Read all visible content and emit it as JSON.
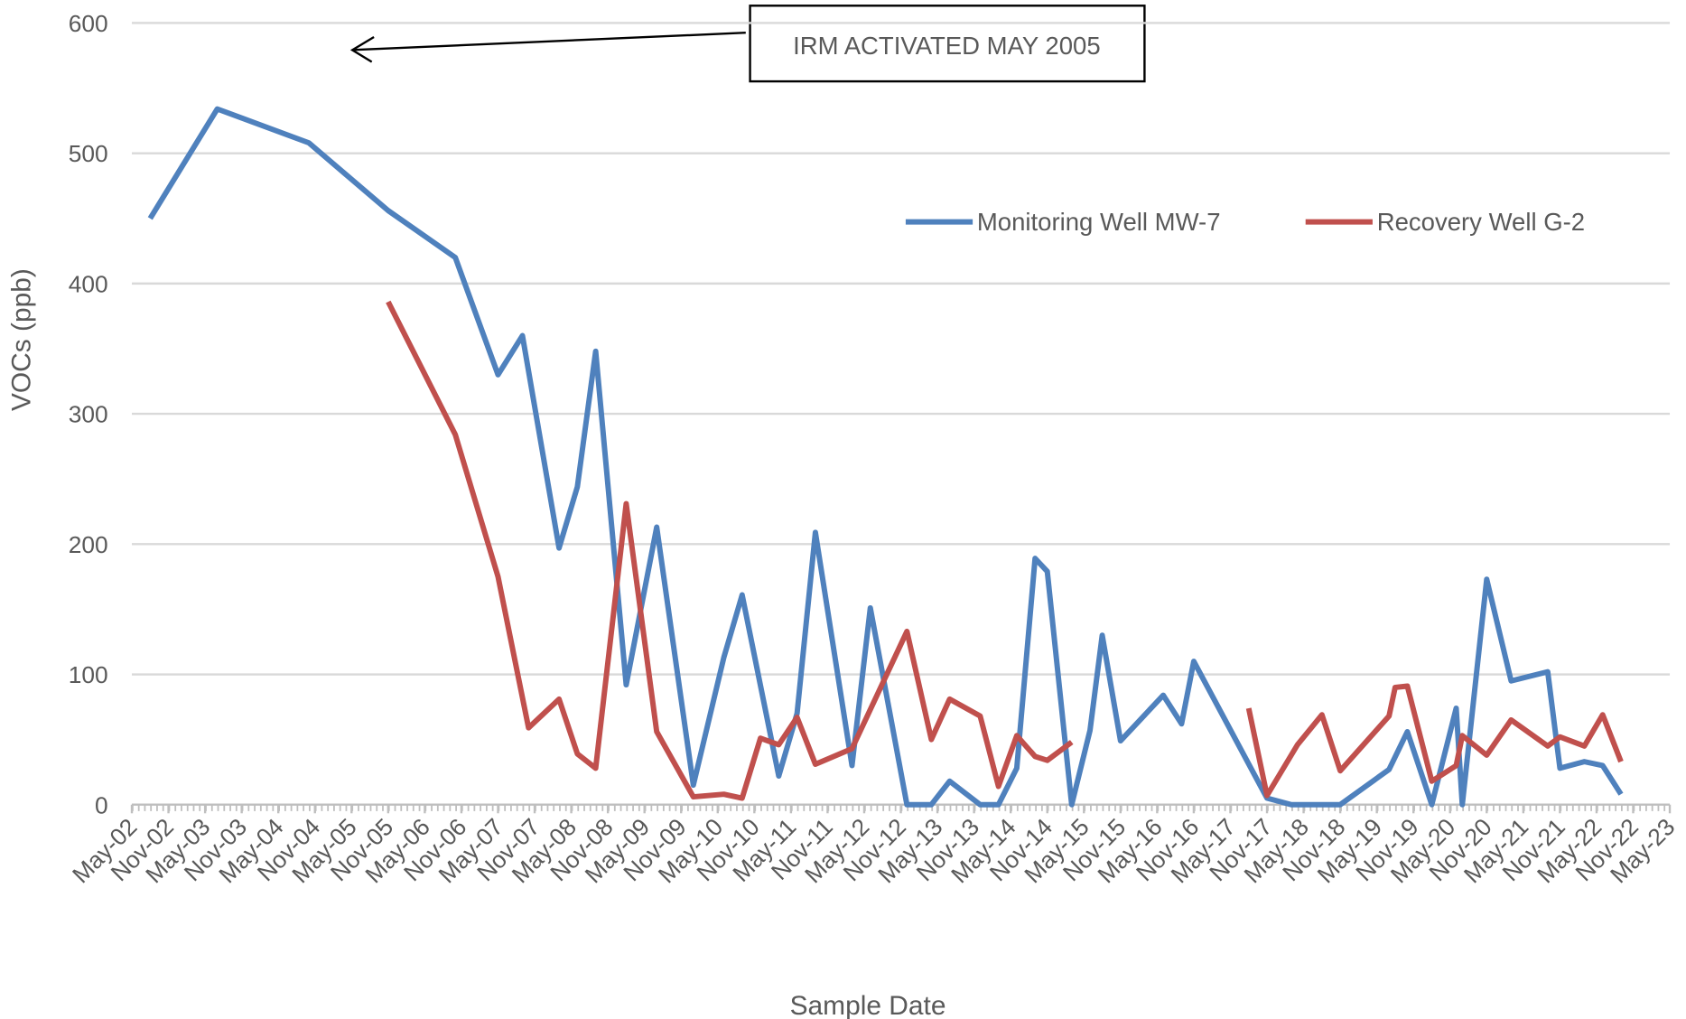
{
  "chart_data": {
    "type": "line",
    "xlabel": "Sample Date",
    "ylabel": "VOCs (ppb)",
    "annotation": "IRM ACTIVATED MAY 2005",
    "xlim": [
      "May-02",
      "May-23"
    ],
    "xticks": [
      "May-02",
      "Nov-02",
      "May-03",
      "Nov-03",
      "May-04",
      "Nov-04",
      "May-05",
      "Nov-05",
      "May-06",
      "Nov-06",
      "May-07",
      "Nov-07",
      "May-08",
      "Nov-08",
      "May-09",
      "Nov-09",
      "May-10",
      "Nov-10",
      "May-11",
      "Nov-11",
      "May-12",
      "Nov-12",
      "May-13",
      "Nov-13",
      "May-14",
      "Nov-14",
      "May-15",
      "Nov-15",
      "May-16",
      "Nov-16",
      "May-17",
      "Nov-17",
      "May-18",
      "Nov-18",
      "May-19",
      "Nov-19",
      "May-20",
      "Nov-20",
      "May-21",
      "Nov-21",
      "May-22",
      "Nov-22",
      "May-23"
    ],
    "ylim": [
      0,
      600
    ],
    "yticks": [
      0,
      100,
      200,
      300,
      400,
      500,
      600
    ],
    "grid": true,
    "legend": "upper right",
    "series": [
      {
        "name": "Monitoring Well MW-7",
        "color": "#4f81bd",
        "x": [
          "Aug-02",
          "Jul-03",
          "Oct-04",
          "Nov-05",
          "Oct-06",
          "May-07",
          "Sep-07",
          "Mar-08",
          "Jun-08",
          "Sep-08",
          "Feb-09",
          "Jul-09",
          "Jan-10",
          "Jun-10",
          "Sep-10",
          "Mar-11",
          "Jun-11",
          "Sep-11",
          "Mar-12",
          "Jun-12",
          "Dec-12",
          "Apr-13",
          "Jul-13",
          "Dec-13",
          "Mar-14",
          "Jun-14",
          "Sep-14",
          "Nov-14",
          "Mar-15",
          "Jun-15",
          "Aug-15",
          "Nov-15",
          "Jun-16",
          "Sep-16",
          "Nov-16",
          "Nov-17",
          "Mar-18",
          "Nov-18",
          "Jul-19",
          "Oct-19",
          "Feb-20",
          "Jun-20",
          "Jul-20",
          "Nov-20",
          "Mar-21",
          "Sep-21",
          "Nov-21",
          "Mar-22",
          "Jun-22",
          "Sep-22"
        ],
        "values": [
          450,
          534,
          508,
          456,
          420,
          330,
          360,
          197,
          244,
          348,
          92,
          213,
          15,
          113,
          161,
          22,
          70,
          209,
          30,
          151,
          0,
          0,
          18,
          0,
          0,
          28,
          189,
          179,
          0,
          57,
          130,
          49,
          84,
          62,
          110,
          5,
          0,
          0,
          27,
          56,
          0,
          74,
          0,
          173,
          95,
          102,
          28,
          33,
          30,
          8
        ]
      },
      {
        "name": "Recovery Well G-2",
        "color": "#c0504d",
        "x": [
          "Nov-05",
          "Oct-06",
          "May-07",
          "Oct-07",
          "Mar-08",
          "Jun-08",
          "Sep-08",
          "Feb-09",
          "Jul-09",
          "Jan-10",
          "Jun-10",
          "Sep-10",
          "Dec-10",
          "Mar-11",
          "Jun-11",
          "Sep-11",
          "Mar-12",
          "Dec-12",
          "Apr-13",
          "Jul-13",
          "Dec-13",
          "Mar-14",
          "Jun-14",
          "Sep-14",
          "Nov-14",
          "Mar-15",
          "Jun-16",
          "Aug-17",
          "Nov-17",
          "Apr-18",
          "Aug-18",
          "Nov-18",
          "Jul-19",
          "Aug-19",
          "Oct-19",
          "Feb-20",
          "Jun-20",
          "Jul-20",
          "Nov-20",
          "Mar-21",
          "Sep-21",
          "Nov-21",
          "Mar-22",
          "Jun-22",
          "Sep-22"
        ],
        "values": [
          386,
          284,
          175,
          59,
          81,
          39,
          28,
          231,
          56,
          6,
          8,
          5,
          51,
          46,
          67,
          31,
          43,
          133,
          50,
          81,
          68,
          14,
          53,
          37,
          34,
          48,
          null,
          74,
          7,
          46,
          69,
          26,
          68,
          90,
          91,
          18,
          30,
          53,
          38,
          65,
          45,
          52,
          45,
          69,
          33
        ]
      }
    ]
  }
}
